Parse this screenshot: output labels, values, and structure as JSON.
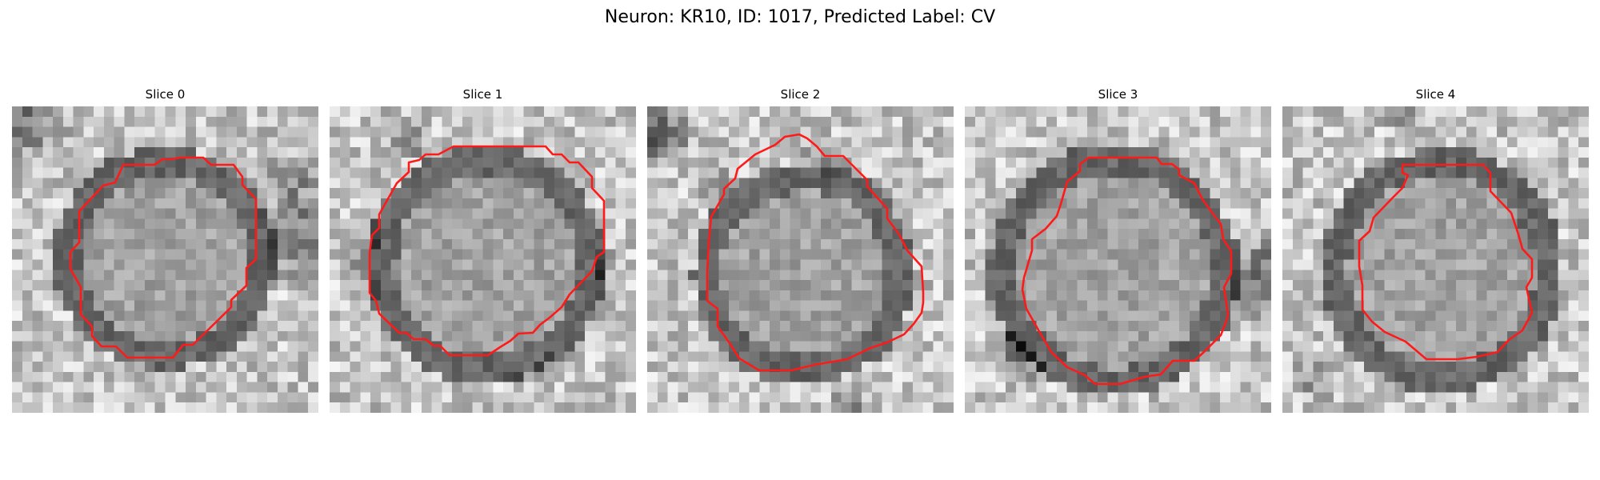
{
  "figure": {
    "title": "Neuron: KR10, ID: 1017, Predicted Label: CV",
    "contour_color": "#ff1a1a",
    "colormap": "gray"
  },
  "panels": [
    {
      "title": "Slice 0"
    },
    {
      "title": "Slice 1"
    },
    {
      "title": "Slice 2"
    },
    {
      "title": "Slice 3"
    },
    {
      "title": "Slice 4"
    }
  ]
}
